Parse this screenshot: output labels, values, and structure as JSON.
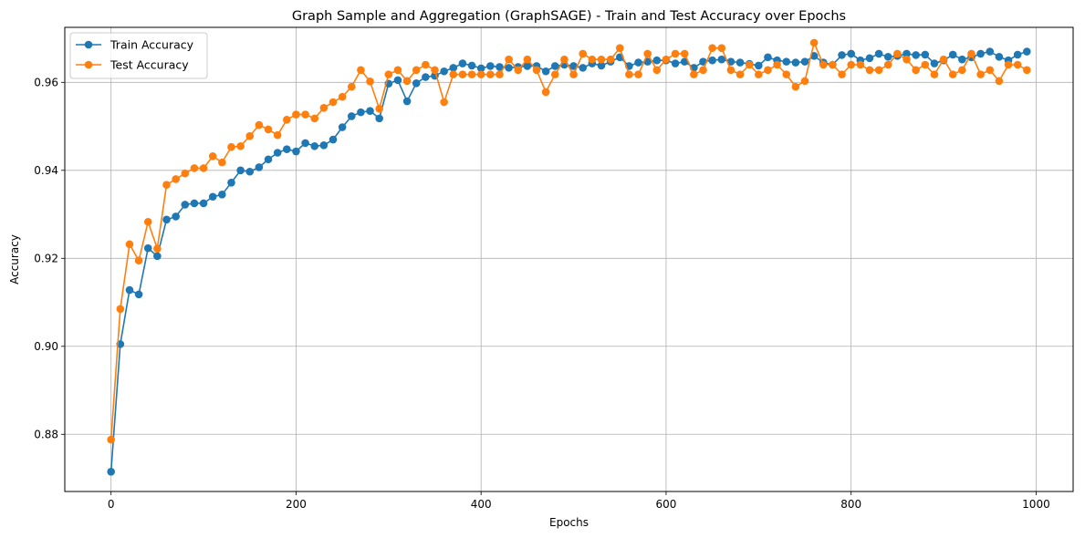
{
  "chart_data": {
    "type": "line",
    "title": "Graph Sample and Aggregation (GraphSAGE) - Train and Test Accuracy over Epochs",
    "xlabel": "Epochs",
    "ylabel": "Accuracy",
    "xlim": [
      -50,
      1040
    ],
    "ylim": [
      0.867,
      0.9725
    ],
    "xticks": [
      0,
      200,
      400,
      600,
      800,
      1000
    ],
    "xtick_labels": [
      "0",
      "200",
      "400",
      "600",
      "800",
      "1000"
    ],
    "yticks": [
      0.88,
      0.9,
      0.92,
      0.94,
      0.96
    ],
    "ytick_labels": [
      "0.88",
      "0.90",
      "0.92",
      "0.94",
      "0.96"
    ],
    "grid": true,
    "legend_position": "top-left",
    "x": [
      0,
      10,
      20,
      30,
      40,
      50,
      60,
      70,
      80,
      90,
      100,
      110,
      120,
      130,
      140,
      150,
      160,
      170,
      180,
      190,
      200,
      210,
      220,
      230,
      240,
      250,
      260,
      270,
      280,
      290,
      300,
      310,
      320,
      330,
      340,
      350,
      360,
      370,
      380,
      390,
      400,
      410,
      420,
      430,
      440,
      450,
      460,
      470,
      480,
      490,
      500,
      510,
      520,
      530,
      540,
      550,
      560,
      570,
      580,
      590,
      600,
      610,
      620,
      630,
      640,
      650,
      660,
      670,
      680,
      690,
      700,
      710,
      720,
      730,
      740,
      750,
      760,
      770,
      780,
      790,
      800,
      810,
      820,
      830,
      840,
      850,
      860,
      870,
      880,
      890,
      900,
      910,
      920,
      930,
      940,
      950,
      960,
      970,
      980,
      990
    ],
    "series": [
      {
        "name": "Train Accuracy",
        "color": "#1f77b4",
        "values": [
          0.8715,
          0.9005,
          0.9128,
          0.9118,
          0.9223,
          0.9205,
          0.9288,
          0.9295,
          0.9322,
          0.9325,
          0.9325,
          0.934,
          0.9345,
          0.9372,
          0.94,
          0.9397,
          0.9407,
          0.9425,
          0.944,
          0.9448,
          0.9443,
          0.9462,
          0.9455,
          0.9457,
          0.947,
          0.9498,
          0.9523,
          0.9532,
          0.9535,
          0.9518,
          0.9597,
          0.9605,
          0.9557,
          0.9598,
          0.9612,
          0.9615,
          0.9625,
          0.9633,
          0.9643,
          0.9638,
          0.9632,
          0.9637,
          0.9635,
          0.9633,
          0.9635,
          0.9637,
          0.9637,
          0.9625,
          0.9637,
          0.964,
          0.9637,
          0.9633,
          0.9643,
          0.9638,
          0.9647,
          0.9657,
          0.9637,
          0.9645,
          0.9647,
          0.965,
          0.965,
          0.9643,
          0.9647,
          0.9633,
          0.9647,
          0.965,
          0.9652,
          0.9647,
          0.9645,
          0.9642,
          0.9638,
          0.9657,
          0.965,
          0.9647,
          0.9645,
          0.9647,
          0.966,
          0.9645,
          0.964,
          0.9662,
          0.9665,
          0.965,
          0.9655,
          0.9665,
          0.9658,
          0.966,
          0.9665,
          0.9662,
          0.9663,
          0.9643,
          0.965,
          0.9663,
          0.9652,
          0.9657,
          0.9665,
          0.967,
          0.9658,
          0.965,
          0.9663,
          0.967
        ]
      },
      {
        "name": "Test Accuracy",
        "color": "#ff7f0e",
        "values": [
          0.8788,
          0.9085,
          0.9232,
          0.9195,
          0.9283,
          0.9222,
          0.9367,
          0.938,
          0.9393,
          0.9405,
          0.9405,
          0.9432,
          0.9418,
          0.9453,
          0.9455,
          0.9478,
          0.9503,
          0.9493,
          0.948,
          0.9515,
          0.9527,
          0.9527,
          0.9518,
          0.9542,
          0.9555,
          0.9567,
          0.959,
          0.9628,
          0.9602,
          0.954,
          0.9618,
          0.9628,
          0.9603,
          0.9628,
          0.964,
          0.9628,
          0.9555,
          0.9618,
          0.9618,
          0.9618,
          0.9618,
          0.9618,
          0.9618,
          0.9652,
          0.9628,
          0.9652,
          0.9628,
          0.9578,
          0.9618,
          0.9652,
          0.9618,
          0.9665,
          0.9652,
          0.9652,
          0.9652,
          0.9678,
          0.9618,
          0.9618,
          0.9665,
          0.9628,
          0.9652,
          0.9665,
          0.9665,
          0.9618,
          0.9628,
          0.9678,
          0.9678,
          0.9628,
          0.9618,
          0.964,
          0.9618,
          0.9628,
          0.964,
          0.9618,
          0.959,
          0.9603,
          0.969,
          0.964,
          0.964,
          0.9618,
          0.964,
          0.964,
          0.9628,
          0.9628,
          0.964,
          0.9665,
          0.9652,
          0.9628,
          0.964,
          0.9618,
          0.9652,
          0.9618,
          0.9628,
          0.9665,
          0.9618,
          0.9628,
          0.9603,
          0.964,
          0.964,
          0.9628
        ]
      }
    ]
  }
}
